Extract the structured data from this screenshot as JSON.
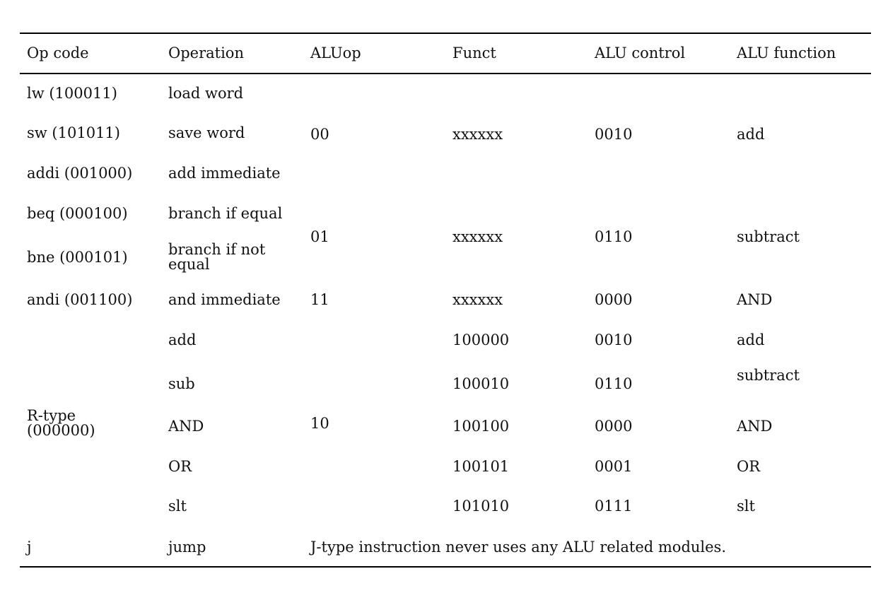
{
  "table": {
    "headers": [
      "Op code",
      "Operation",
      "ALUop",
      "Funct",
      "ALU control",
      "ALU function"
    ],
    "rows": [
      {
        "opcode": "lw (100011)",
        "operation": "load word"
      },
      {
        "opcode": "sw (101011)",
        "operation": "save word"
      },
      {
        "opcode": "addi (001000)",
        "operation": "add immediate"
      },
      {
        "opcode": "beq (000100)",
        "operation": "branch if equal"
      },
      {
        "opcode": "bne (000101)",
        "operation_line1": "branch if not",
        "operation_line2": "equal"
      },
      {
        "opcode": "andi (001100)",
        "operation": "and immediate",
        "aluop": "11",
        "funct": "xxxxxx",
        "alu_control": "0000",
        "alu_function": "AND"
      },
      {
        "operation": "add",
        "funct": "100000",
        "alu_control": "0010",
        "alu_function": "add"
      },
      {
        "operation": "sub",
        "funct": "100010",
        "alu_control": "0110",
        "alu_function": "subtract"
      },
      {
        "operation": "AND",
        "funct": "100100",
        "alu_control": "0000",
        "alu_function": "AND"
      },
      {
        "operation": "OR",
        "funct": "100101",
        "alu_control": "0001",
        "alu_function": "OR"
      },
      {
        "operation": "slt",
        "funct": "101010",
        "alu_control": "0111",
        "alu_function": "slt"
      },
      {
        "opcode": "j",
        "operation": "jump",
        "note": "J-type instruction never uses any ALU related modules."
      }
    ],
    "group_memory": {
      "aluop": "00",
      "funct": "xxxxxx",
      "alu_control": "0010",
      "alu_function": "add"
    },
    "group_branch": {
      "aluop": "01",
      "funct": "xxxxxx",
      "alu_control": "0110",
      "alu_function": "subtract"
    },
    "group_rtype": {
      "opcode_line1": "R-type",
      "opcode_line2": "(000000)",
      "aluop": "10"
    }
  }
}
